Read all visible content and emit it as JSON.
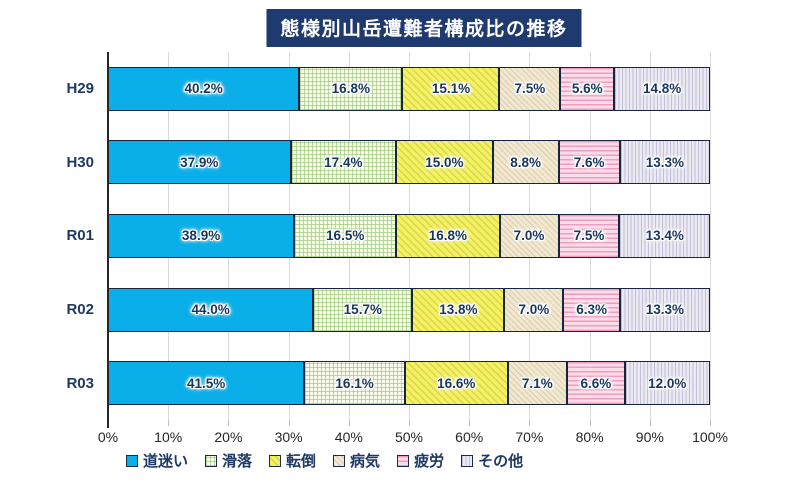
{
  "title": "態様別山岳遭難者構成比の推移",
  "colors": {
    "title_bg": "#1e3a6e",
    "title_text": "#ffffff",
    "label_text": "#1f3864",
    "value_text": "#17365c",
    "axis_line": "#262626",
    "gridline": "#d9d9d9",
    "segment_border": "#16243f",
    "background": "#ffffff"
  },
  "chart_data": {
    "type": "bar",
    "stacked": true,
    "orientation": "horizontal",
    "title": "態様別山岳遭難者構成比の推移",
    "categories": [
      "H29",
      "H30",
      "R01",
      "R02",
      "R03"
    ],
    "series": [
      {
        "key": "lost",
        "name": "道迷い",
        "pattern": "solid",
        "color": "#0aaee8",
        "values": [
          40.2,
          37.9,
          38.9,
          44.0,
          41.5
        ]
      },
      {
        "key": "slip-fall",
        "name": "滑落",
        "pattern": "grid",
        "color": "#f8fbe9",
        "pattern_color": "#96c572",
        "values": [
          16.8,
          17.4,
          16.5,
          15.7,
          16.1
        ]
      },
      {
        "key": "tumble",
        "name": "転倒",
        "pattern": "diagonal",
        "color": "#f4f163",
        "pattern_color": "#bdbd3e",
        "values": [
          15.1,
          15.0,
          16.8,
          13.8,
          16.6
        ]
      },
      {
        "key": "illness",
        "name": "病気",
        "pattern": "diagonal-subtle",
        "color": "#f1e8d1",
        "pattern_color": "#c6ae7e",
        "values": [
          7.5,
          8.8,
          7.0,
          7.0,
          7.1
        ]
      },
      {
        "key": "fatigue",
        "name": "疲労",
        "pattern": "horizontal",
        "color": "#fbdde9",
        "pattern_color": "#ec92b8",
        "values": [
          5.6,
          7.6,
          7.5,
          6.3,
          6.6
        ]
      },
      {
        "key": "other",
        "name": "その他",
        "pattern": "vertical",
        "color": "#ebe9f2",
        "pattern_color": "#a09bbe",
        "values": [
          14.8,
          13.3,
          13.4,
          13.3,
          12.0
        ]
      }
    ],
    "x_ticks": [
      "0%",
      "10%",
      "20%",
      "30%",
      "40%",
      "50%",
      "60%",
      "70%",
      "80%",
      "90%",
      "100%"
    ],
    "xlim": [
      0,
      100
    ],
    "value_suffix": "%",
    "value_decimals": 1,
    "grid": true,
    "legend_position": "bottom"
  }
}
